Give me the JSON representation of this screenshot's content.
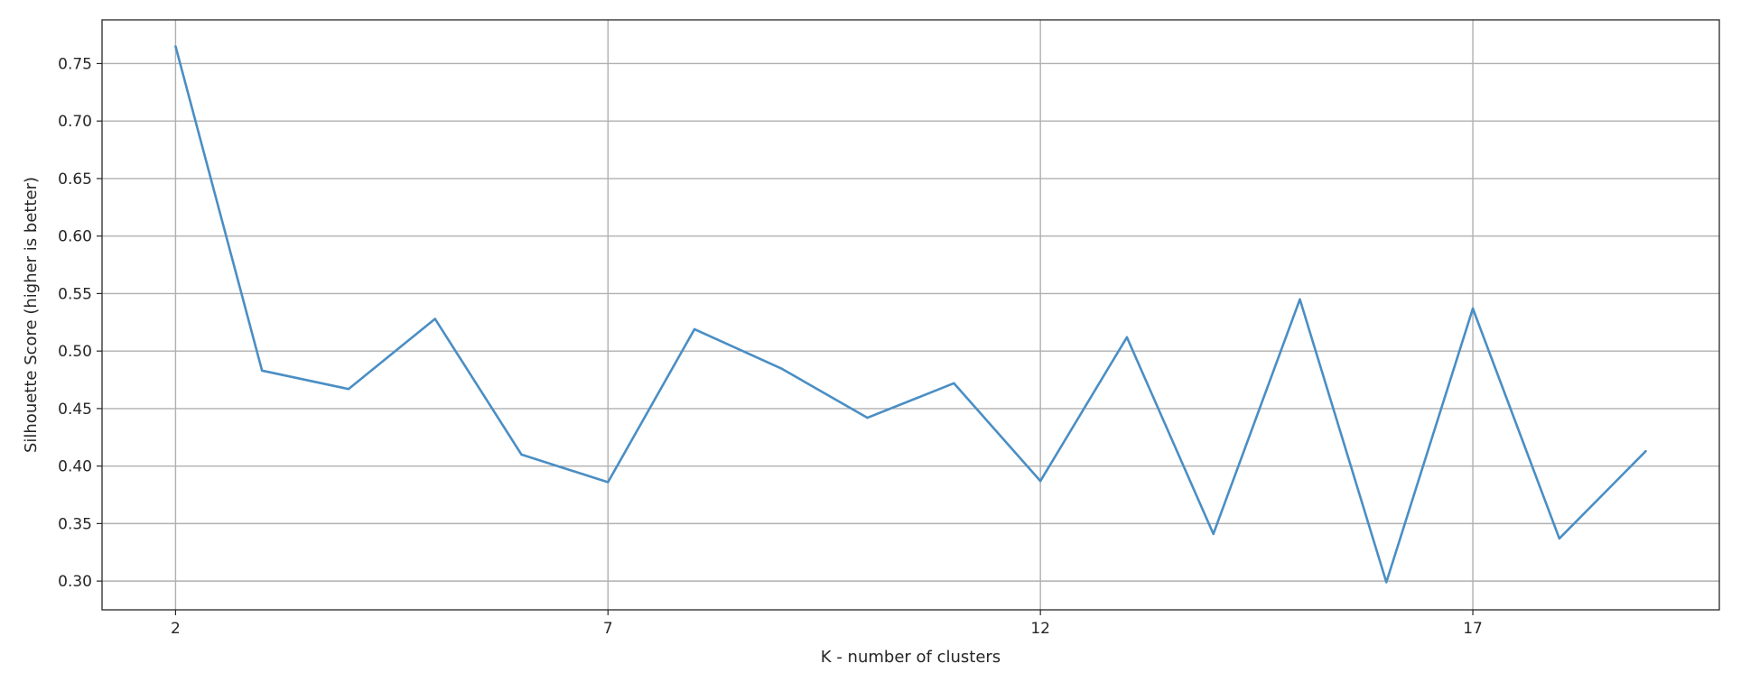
{
  "chart_data": {
    "type": "line",
    "title": "",
    "xlabel": "K - number of clusters",
    "ylabel": "Silhouette Score (higher is better)",
    "xlim": [
      1.15,
      19.85
    ],
    "ylim": [
      0.275,
      0.788
    ],
    "xticks": [
      2,
      7,
      12,
      17
    ],
    "xtick_labels": [
      "2",
      "7",
      "12",
      "17"
    ],
    "yticks": [
      0.3,
      0.35,
      0.4,
      0.45,
      0.5,
      0.55,
      0.6,
      0.65,
      0.7,
      0.75
    ],
    "ytick_labels": [
      "0.30",
      "0.35",
      "0.40",
      "0.45",
      "0.50",
      "0.55",
      "0.60",
      "0.65",
      "0.70",
      "0.75"
    ],
    "grid": true,
    "line_color": "#4a8ec4",
    "series": [
      {
        "x": [
          2,
          3,
          4,
          5,
          6,
          7,
          8,
          9,
          10,
          11,
          12,
          13,
          14,
          15,
          16,
          17,
          18,
          19
        ],
        "values": [
          0.765,
          0.483,
          0.467,
          0.528,
          0.41,
          0.386,
          0.519,
          0.485,
          0.442,
          0.472,
          0.387,
          0.512,
          0.341,
          0.545,
          0.299,
          0.537,
          0.337,
          0.413
        ]
      }
    ]
  }
}
